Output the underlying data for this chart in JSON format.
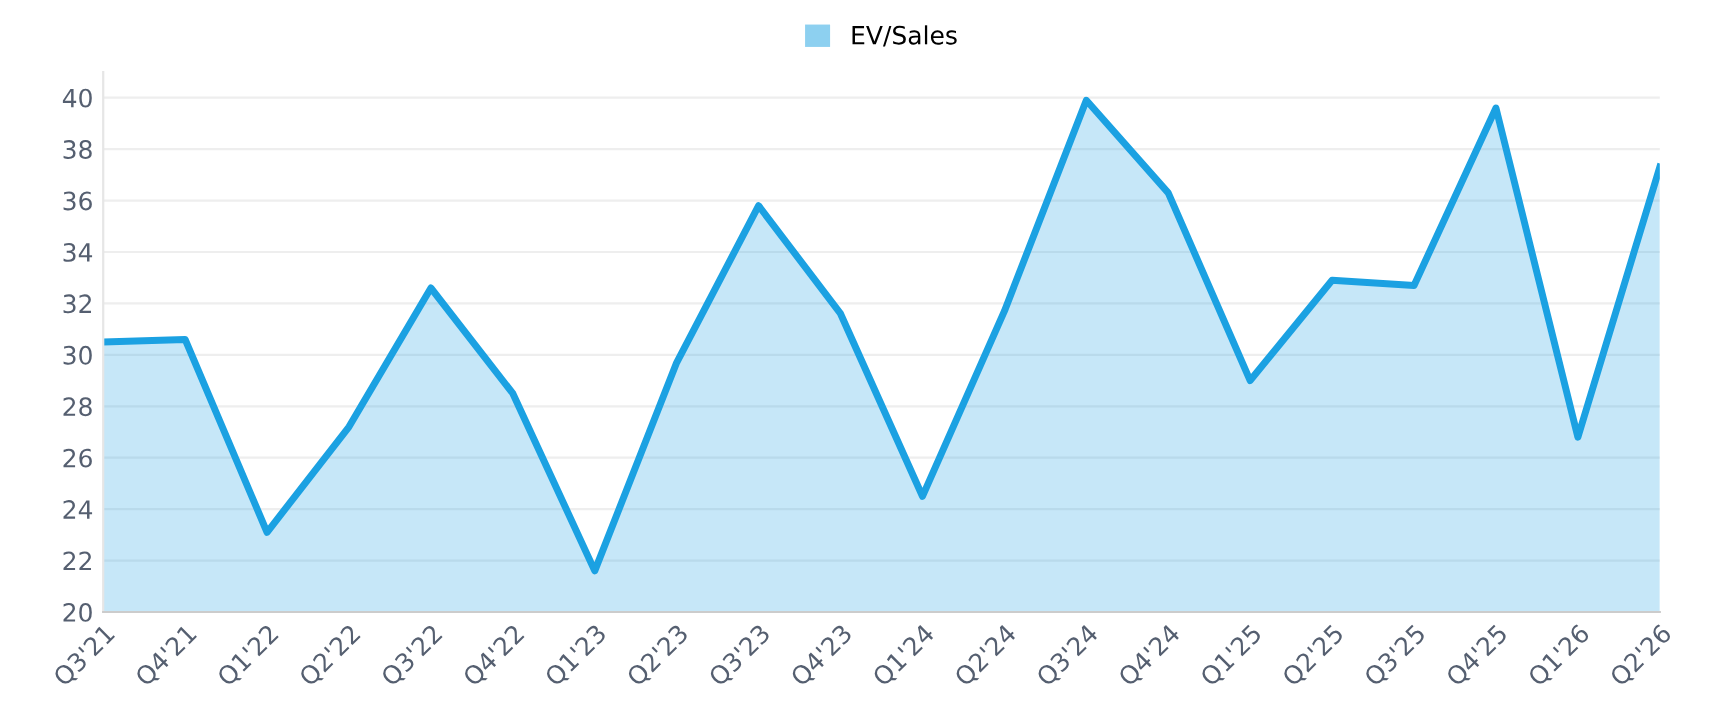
{
  "chart_data": {
    "type": "area",
    "categories": [
      "Q3'21",
      "Q4'21",
      "Q1'22",
      "Q2'22",
      "Q3'22",
      "Q4'22",
      "Q1'23",
      "Q2'23",
      "Q3'23",
      "Q4'23",
      "Q1'24",
      "Q2'24",
      "Q3'24",
      "Q4'24",
      "Q1'25",
      "Q2'25",
      "Q3'25",
      "Q4'25",
      "Q1'26",
      "Q2'26"
    ],
    "series": [
      {
        "name": "EV/Sales",
        "color": "#1ba1e2",
        "values": [
          30.5,
          30.6,
          23.1,
          27.2,
          32.6,
          28.5,
          21.6,
          29.7,
          35.8,
          31.6,
          24.5,
          31.7,
          39.9,
          36.3,
          29.0,
          32.9,
          32.7,
          39.6,
          26.8,
          37.3
        ]
      }
    ],
    "ylim": [
      20,
      41
    ],
    "yticks": [
      20,
      22,
      24,
      26,
      28,
      30,
      32,
      34,
      36,
      38,
      40
    ],
    "grid": "y",
    "legend": "top",
    "marker": "none",
    "line_style": "solid"
  }
}
